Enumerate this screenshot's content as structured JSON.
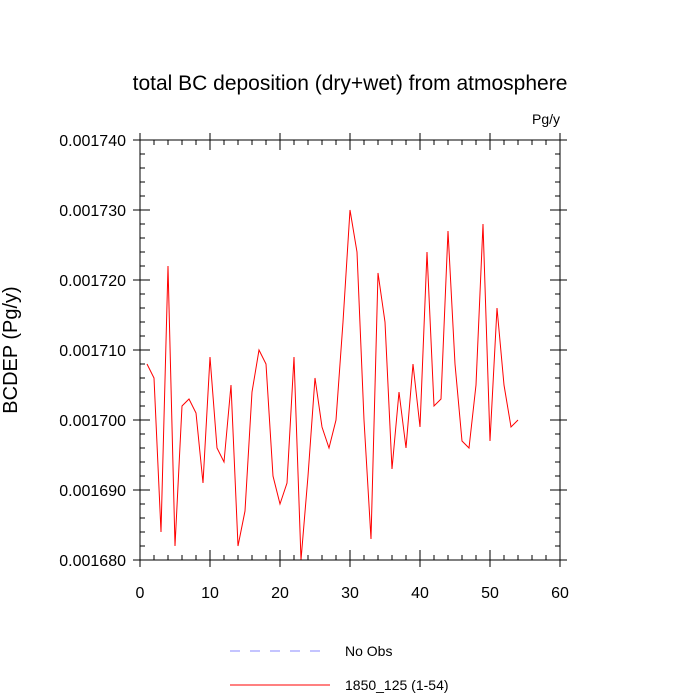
{
  "chart_data": {
    "type": "line",
    "title": "total BC deposition (dry+wet) from atmosphere",
    "units": "Pg/y",
    "ylabel": "BCDEP  (Pg/y)",
    "xlabel": "",
    "xlim": [
      0,
      60
    ],
    "ylim": [
      0.00168,
      0.00174
    ],
    "x_ticks": [
      0,
      10,
      20,
      30,
      40,
      50,
      60
    ],
    "x_tick_labels": [
      "0",
      "10",
      "20",
      "30",
      "40",
      "50",
      "60"
    ],
    "y_ticks": [
      0.00168,
      0.00169,
      0.0017,
      0.00171,
      0.00172,
      0.00173,
      0.00174
    ],
    "y_tick_labels": [
      "0.001680",
      "0.001690",
      "0.001700",
      "0.001710",
      "0.001720",
      "0.001730",
      "0.001740"
    ],
    "grid": false,
    "legend_placement": "bottom-center",
    "series": [
      {
        "name": "No Obs",
        "color": "#8888ff",
        "dash": "dashed",
        "x": [],
        "y": []
      },
      {
        "name": "1850_125 (1-54)",
        "color": "#ff0000",
        "dash": "solid",
        "x": [
          1,
          2,
          3,
          4,
          5,
          6,
          7,
          8,
          9,
          10,
          11,
          12,
          13,
          14,
          15,
          16,
          17,
          18,
          19,
          20,
          21,
          22,
          23,
          24,
          25,
          26,
          27,
          28,
          29,
          30,
          31,
          32,
          33,
          34,
          35,
          36,
          37,
          38,
          39,
          40,
          41,
          42,
          43,
          44,
          45,
          46,
          47,
          48,
          49,
          50,
          51,
          52,
          53,
          54
        ],
        "y": [
          0.001708,
          0.001706,
          0.001684,
          0.001722,
          0.001682,
          0.001702,
          0.001703,
          0.001701,
          0.001691,
          0.001709,
          0.001696,
          0.001694,
          0.001705,
          0.001682,
          0.001687,
          0.001704,
          0.00171,
          0.001708,
          0.001692,
          0.001688,
          0.001691,
          0.001709,
          0.00168,
          0.001692,
          0.001706,
          0.001699,
          0.001696,
          0.0017,
          0.001714,
          0.00173,
          0.001724,
          0.0017,
          0.001683,
          0.001721,
          0.001714,
          0.001693,
          0.001704,
          0.001696,
          0.001708,
          0.001699,
          0.001724,
          0.001702,
          0.001703,
          0.001727,
          0.001708,
          0.001697,
          0.001696,
          0.001705,
          0.001728,
          0.001697,
          0.001716,
          0.001705,
          0.001699,
          0.0017
        ]
      }
    ]
  }
}
